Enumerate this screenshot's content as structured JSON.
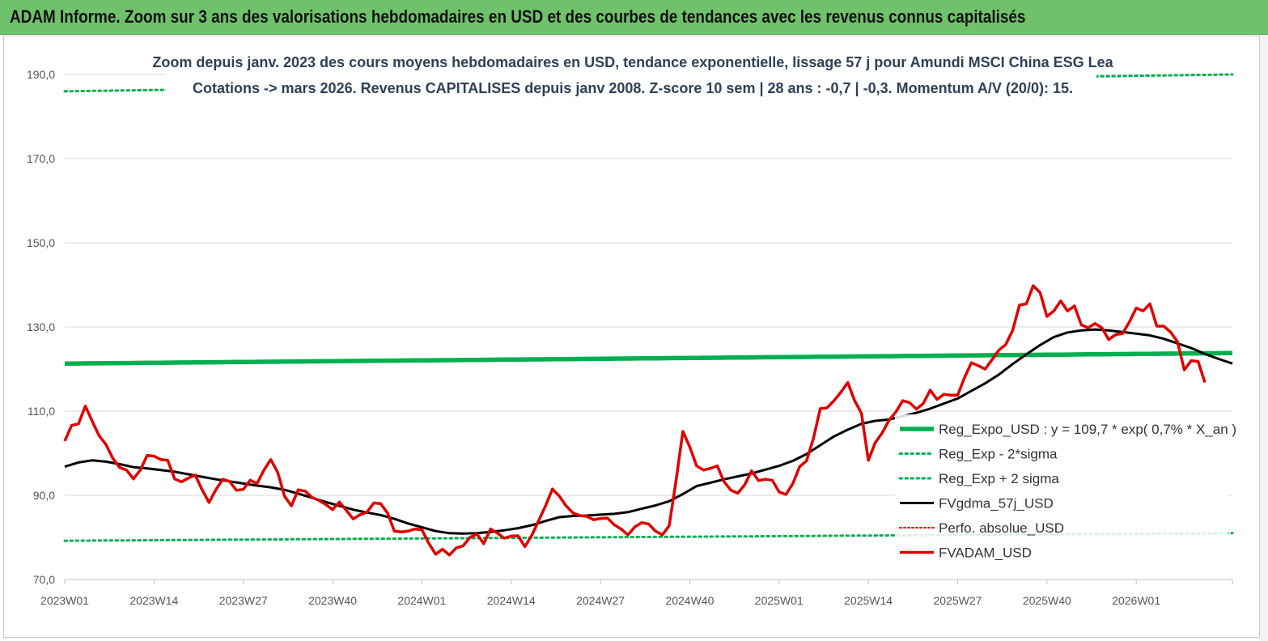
{
  "header": {
    "title": "ADAM Informe. Zoom sur 3 ans des valorisations hebdomadaires en USD et des courbes de tendances avec les revenus connus capitalisés"
  },
  "colors": {
    "header_bg": "#70c16b",
    "reg_expo": "#00b050",
    "sigma_bands": "#00b050",
    "fvgdma": "#000000",
    "perfo": "#e00000",
    "fvadam": "#e00000"
  },
  "chart_data": {
    "type": "line",
    "title_lines": [
      "Zoom depuis janv. 2023 des cours moyens hebdomadaires en USD, tendance exponentielle, lissage 57 j pour Amundi MSCI China ESG Lea",
      "Cotations -> mars 2026. Revenus CAPITALISES depuis janv 2008. Z-score 10 sem | 28 ans : -0,7 | -0,3. Momentum A/V (20/0): 15."
    ],
    "ylim": [
      70,
      190
    ],
    "y_ticks": [
      "70,0",
      "90,0",
      "110,0",
      "130,0",
      "150,0",
      "170,0",
      "190,0"
    ],
    "y_tick_values": [
      70,
      90,
      110,
      130,
      150,
      170,
      190
    ],
    "x_ticks": [
      "2023W01",
      "2023W14",
      "2023W27",
      "2023W40",
      "2024W01",
      "2024W14",
      "2024W27",
      "2024W40",
      "2025W01",
      "2025W14",
      "2025W27",
      "2025W40",
      "2026W01"
    ],
    "x_tick_weeks": [
      0,
      13,
      26,
      39,
      52,
      65,
      78,
      91,
      104,
      117,
      130,
      143,
      156
    ],
    "grid": "horizontal",
    "legend_position": "bottom-right",
    "series": [
      {
        "name": "Reg_Expo_USD : y = 109,7 * exp( 0,7% * X_an )",
        "style": "solid-thick",
        "points": [
          [
            0,
            121.3
          ],
          [
            170,
            123.8
          ]
        ]
      },
      {
        "name": "Reg_Exp - 2*sigma",
        "style": "dotted",
        "points": [
          [
            0,
            79.2
          ],
          [
            170,
            81.0
          ]
        ]
      },
      {
        "name": "Reg_Exp + 2 sigma",
        "style": "dotted",
        "points": [
          [
            0,
            186.0
          ],
          [
            170,
            190.0
          ]
        ]
      },
      {
        "name": "FVgdma_57j_USD",
        "style": "solid",
        "points": [
          [
            0,
            96.8
          ],
          [
            2,
            97.8
          ],
          [
            4,
            98.3
          ],
          [
            6,
            98.0
          ],
          [
            8,
            97.4
          ],
          [
            10,
            96.7
          ],
          [
            12,
            96.4
          ],
          [
            14,
            96.0
          ],
          [
            16,
            95.6
          ],
          [
            18,
            95.0
          ],
          [
            20,
            94.4
          ],
          [
            22,
            93.8
          ],
          [
            24,
            93.3
          ],
          [
            26,
            92.8
          ],
          [
            28,
            92.3
          ],
          [
            30,
            91.9
          ],
          [
            32,
            91.3
          ],
          [
            34,
            90.4
          ],
          [
            36,
            89.4
          ],
          [
            38,
            88.4
          ],
          [
            40,
            87.5
          ],
          [
            42,
            86.6
          ],
          [
            44,
            85.9
          ],
          [
            46,
            85.3
          ],
          [
            48,
            84.4
          ],
          [
            50,
            83.3
          ],
          [
            52,
            82.4
          ],
          [
            54,
            81.5
          ],
          [
            56,
            81.0
          ],
          [
            58,
            80.9
          ],
          [
            60,
            81.0
          ],
          [
            62,
            81.3
          ],
          [
            64,
            81.7
          ],
          [
            66,
            82.2
          ],
          [
            68,
            82.9
          ],
          [
            70,
            83.9
          ],
          [
            72,
            84.8
          ],
          [
            74,
            85.1
          ],
          [
            76,
            85.2
          ],
          [
            78,
            85.4
          ],
          [
            80,
            85.6
          ],
          [
            82,
            86.0
          ],
          [
            84,
            86.8
          ],
          [
            86,
            87.6
          ],
          [
            88,
            88.6
          ],
          [
            90,
            90.3
          ],
          [
            92,
            92.2
          ],
          [
            94,
            93.0
          ],
          [
            96,
            93.8
          ],
          [
            98,
            94.5
          ],
          [
            100,
            95.2
          ],
          [
            102,
            96.1
          ],
          [
            104,
            97.0
          ],
          [
            106,
            98.2
          ],
          [
            108,
            99.8
          ],
          [
            110,
            101.9
          ],
          [
            112,
            104.0
          ],
          [
            114,
            105.6
          ],
          [
            116,
            107.0
          ],
          [
            118,
            107.7
          ],
          [
            120,
            108.0
          ],
          [
            122,
            108.8
          ],
          [
            124,
            109.6
          ],
          [
            126,
            110.6
          ],
          [
            128,
            111.8
          ],
          [
            130,
            113.0
          ],
          [
            132,
            114.8
          ],
          [
            134,
            116.6
          ],
          [
            136,
            118.7
          ],
          [
            138,
            121.2
          ],
          [
            140,
            123.5
          ],
          [
            142,
            125.7
          ],
          [
            144,
            127.6
          ],
          [
            146,
            128.7
          ],
          [
            148,
            129.2
          ],
          [
            150,
            129.4
          ],
          [
            152,
            129.2
          ],
          [
            154,
            128.8
          ],
          [
            156,
            128.4
          ],
          [
            158,
            128.0
          ],
          [
            160,
            127.2
          ],
          [
            162,
            126.1
          ],
          [
            164,
            125.0
          ],
          [
            166,
            123.6
          ],
          [
            168,
            122.4
          ],
          [
            170,
            121.3
          ]
        ]
      },
      {
        "name": "Perfo. absolue_USD",
        "style": "dotted",
        "points": []
      },
      {
        "name": "FVADAM_USD",
        "style": "solid-thick",
        "points": [
          [
            0,
            102.9
          ],
          [
            1,
            106.6
          ],
          [
            2,
            107.0
          ],
          [
            3,
            111.2
          ],
          [
            4,
            107.6
          ],
          [
            5,
            104.2
          ],
          [
            6,
            102.1
          ],
          [
            7,
            98.8
          ],
          [
            8,
            96.6
          ],
          [
            9,
            96.0
          ],
          [
            10,
            93.9
          ],
          [
            11,
            96.0
          ],
          [
            12,
            99.5
          ],
          [
            13,
            99.3
          ],
          [
            14,
            98.5
          ],
          [
            15,
            98.3
          ],
          [
            16,
            93.9
          ],
          [
            17,
            93.2
          ],
          [
            18,
            94.1
          ],
          [
            19,
            94.8
          ],
          [
            20,
            91.3
          ],
          [
            21,
            88.3
          ],
          [
            22,
            91.3
          ],
          [
            23,
            93.8
          ],
          [
            24,
            93.3
          ],
          [
            25,
            91.2
          ],
          [
            26,
            91.4
          ],
          [
            27,
            93.6
          ],
          [
            28,
            92.8
          ],
          [
            29,
            96.0
          ],
          [
            30,
            98.5
          ],
          [
            31,
            95.5
          ],
          [
            32,
            89.8
          ],
          [
            33,
            87.5
          ],
          [
            34,
            91.3
          ],
          [
            35,
            91.0
          ],
          [
            36,
            89.5
          ],
          [
            37,
            88.8
          ],
          [
            38,
            87.8
          ],
          [
            39,
            86.6
          ],
          [
            40,
            88.4
          ],
          [
            41,
            86.4
          ],
          [
            42,
            84.4
          ],
          [
            43,
            85.4
          ],
          [
            44,
            86.0
          ],
          [
            45,
            88.2
          ],
          [
            46,
            88.0
          ],
          [
            47,
            85.8
          ],
          [
            48,
            81.5
          ],
          [
            49,
            81.3
          ],
          [
            50,
            81.5
          ],
          [
            51,
            82.0
          ],
          [
            52,
            81.8
          ],
          [
            53,
            78.6
          ],
          [
            54,
            76.0
          ],
          [
            55,
            77.2
          ],
          [
            56,
            75.8
          ],
          [
            57,
            77.5
          ],
          [
            58,
            78.0
          ],
          [
            59,
            80.0
          ],
          [
            60,
            80.8
          ],
          [
            61,
            78.5
          ],
          [
            62,
            82.0
          ],
          [
            63,
            81.0
          ],
          [
            64,
            79.8
          ],
          [
            65,
            80.3
          ],
          [
            66,
            80.4
          ],
          [
            67,
            77.8
          ],
          [
            68,
            80.5
          ],
          [
            69,
            84.0
          ],
          [
            70,
            87.5
          ],
          [
            71,
            91.5
          ],
          [
            72,
            89.8
          ],
          [
            73,
            87.5
          ],
          [
            74,
            85.8
          ],
          [
            75,
            85.2
          ],
          [
            76,
            85.0
          ],
          [
            77,
            84.2
          ],
          [
            78,
            84.5
          ],
          [
            79,
            84.6
          ],
          [
            80,
            83.0
          ],
          [
            81,
            82.0
          ],
          [
            82,
            80.6
          ],
          [
            83,
            82.5
          ],
          [
            84,
            83.5
          ],
          [
            85,
            83.2
          ],
          [
            86,
            81.5
          ],
          [
            87,
            80.6
          ],
          [
            88,
            82.8
          ],
          [
            89,
            93.5
          ],
          [
            90,
            105.2
          ],
          [
            91,
            101.5
          ],
          [
            92,
            97.0
          ],
          [
            93,
            96.0
          ],
          [
            94,
            96.4
          ],
          [
            95,
            97.0
          ],
          [
            96,
            93.2
          ],
          [
            97,
            91.2
          ],
          [
            98,
            90.5
          ],
          [
            99,
            92.5
          ],
          [
            100,
            95.8
          ],
          [
            101,
            93.5
          ],
          [
            102,
            93.8
          ],
          [
            103,
            93.6
          ],
          [
            104,
            90.8
          ],
          [
            105,
            90.2
          ],
          [
            106,
            92.8
          ],
          [
            107,
            96.8
          ],
          [
            108,
            98.2
          ],
          [
            109,
            103.5
          ],
          [
            110,
            110.6
          ],
          [
            111,
            110.8
          ],
          [
            112,
            112.5
          ],
          [
            113,
            114.5
          ],
          [
            114,
            116.8
          ],
          [
            115,
            112.5
          ],
          [
            116,
            109.5
          ],
          [
            117,
            98.3
          ],
          [
            118,
            102.5
          ],
          [
            119,
            104.8
          ],
          [
            120,
            107.8
          ],
          [
            121,
            109.8
          ],
          [
            122,
            112.5
          ],
          [
            123,
            112.0
          ],
          [
            124,
            110.5
          ],
          [
            125,
            111.8
          ],
          [
            126,
            115.0
          ],
          [
            127,
            112.8
          ],
          [
            128,
            114.0
          ],
          [
            129,
            113.8
          ],
          [
            130,
            113.8
          ],
          [
            131,
            118.0
          ],
          [
            132,
            121.5
          ],
          [
            133,
            120.8
          ],
          [
            134,
            120.0
          ],
          [
            135,
            122.2
          ],
          [
            136,
            124.5
          ],
          [
            137,
            125.8
          ],
          [
            138,
            129.2
          ],
          [
            139,
            135.2
          ],
          [
            140,
            135.5
          ],
          [
            141,
            139.8
          ],
          [
            142,
            138.2
          ],
          [
            143,
            132.5
          ],
          [
            144,
            133.8
          ],
          [
            145,
            136.2
          ],
          [
            146,
            133.8
          ],
          [
            147,
            135.0
          ],
          [
            148,
            130.5
          ],
          [
            149,
            129.8
          ],
          [
            150,
            130.8
          ],
          [
            151,
            129.8
          ],
          [
            152,
            127.0
          ],
          [
            153,
            128.2
          ],
          [
            154,
            128.4
          ],
          [
            155,
            131.2
          ],
          [
            156,
            134.5
          ],
          [
            157,
            133.8
          ],
          [
            158,
            135.5
          ],
          [
            159,
            130.2
          ],
          [
            160,
            130.2
          ],
          [
            161,
            128.8
          ],
          [
            162,
            126.5
          ],
          [
            163,
            119.8
          ],
          [
            164,
            122.0
          ],
          [
            165,
            121.8
          ],
          [
            166,
            116.8
          ]
        ]
      }
    ]
  }
}
